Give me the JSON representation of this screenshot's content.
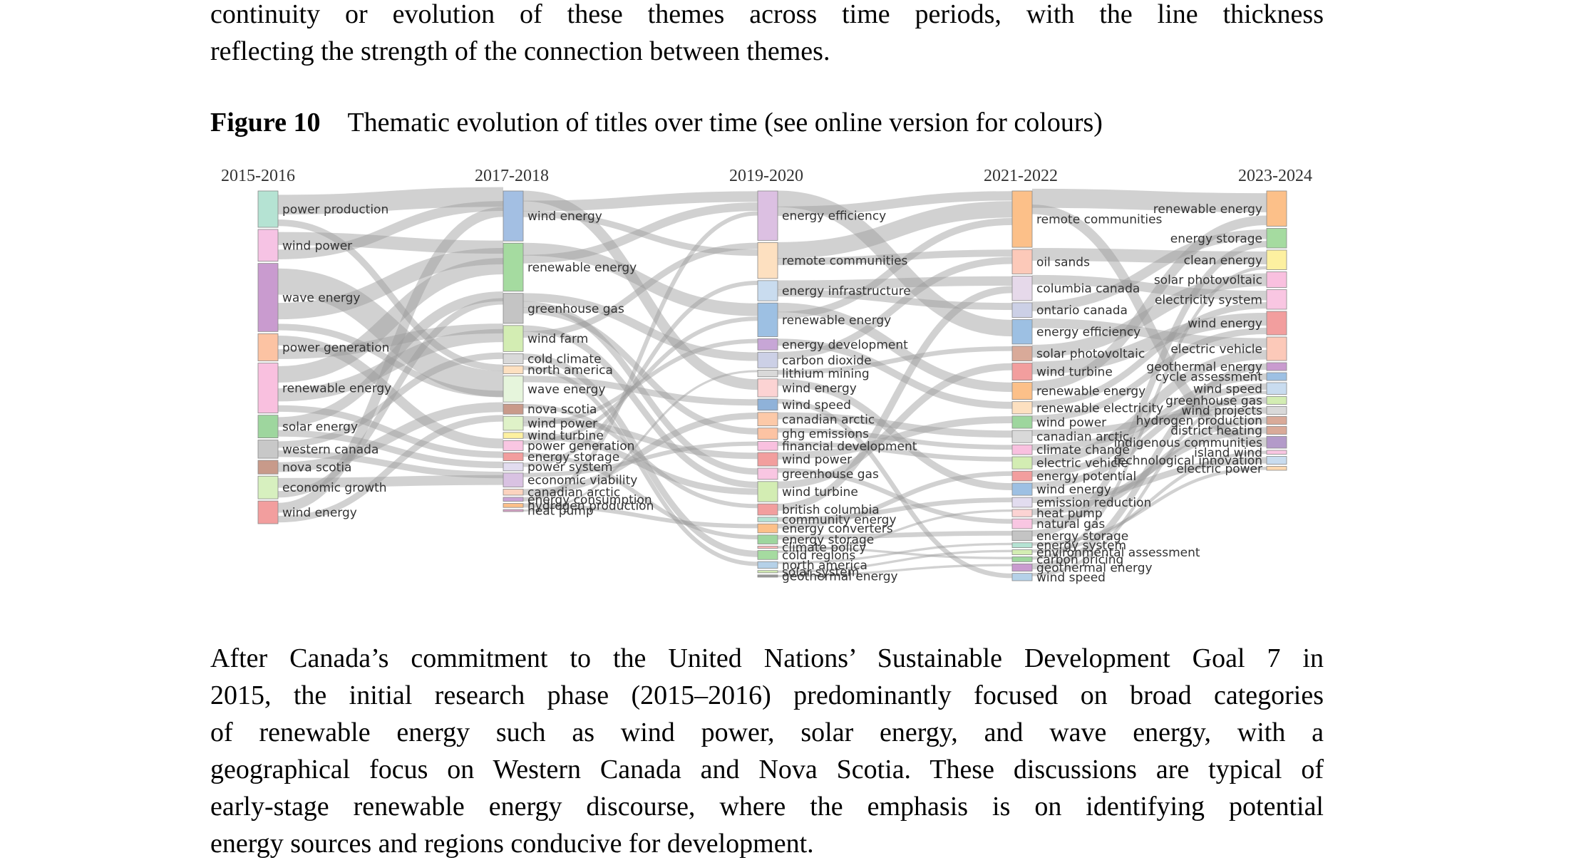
{
  "text_above": [
    "continuity or evolution of these themes across time periods, with the line thickness",
    "reflecting the strength of the connection between themes."
  ],
  "figure": {
    "label": "Figure 10",
    "caption": "Thematic evolution of titles over time (see online version for colours)"
  },
  "chart_data": {
    "type": "sankey",
    "periods": [
      "2015-2016",
      "2017-2018",
      "2019-2020",
      "2021-2022",
      "2023-2024"
    ],
    "nodes": [
      [
        {
          "label": "power production",
          "color": "#b5e3d3"
        },
        {
          "label": "wind power",
          "color": "#f6c3e4"
        },
        {
          "label": "wave energy",
          "color": "#c99bcf"
        },
        {
          "label": "power generation",
          "color": "#fcc3a3"
        },
        {
          "label": "renewable energy",
          "color": "#f9c0df"
        },
        {
          "label": "solar energy",
          "color": "#9ed69e"
        },
        {
          "label": "western canada",
          "color": "#c8c8c8"
        },
        {
          "label": "nova scotia",
          "color": "#c89a8a"
        },
        {
          "label": "economic growth",
          "color": "#d7f0bf"
        },
        {
          "label": "wind energy",
          "color": "#f29e9e"
        }
      ],
      [
        {
          "label": "wind energy",
          "color": "#a3bfe3"
        },
        {
          "label": "renewable energy",
          "color": "#a5dba0"
        },
        {
          "label": "greenhouse gas",
          "color": "#c4c4c4"
        },
        {
          "label": "wind farm",
          "color": "#d3edb3"
        },
        {
          "label": "cold climate",
          "color": "#d9d9d9"
        },
        {
          "label": "north america",
          "color": "#fde0c0"
        },
        {
          "label": "wave energy",
          "color": "#e6f5dc"
        },
        {
          "label": "nova scotia",
          "color": "#c99a8a"
        },
        {
          "label": "wind power",
          "color": "#dff2c8"
        },
        {
          "label": "wind turbine",
          "color": "#fdf0a0"
        },
        {
          "label": "power generation",
          "color": "#f9c6e2"
        },
        {
          "label": "energy storage",
          "color": "#f29e9e"
        },
        {
          "label": "power system",
          "color": "#e2dcef"
        },
        {
          "label": "economic viability",
          "color": "#d9c2e2"
        },
        {
          "label": "canadian arctic",
          "color": "#fcd3bf"
        },
        {
          "label": "energy consumption",
          "color": "#c9a3d6"
        },
        {
          "label": "hydrogen production",
          "color": "#fcc089"
        },
        {
          "label": "heat pump",
          "color": "#d8a3c8"
        }
      ],
      [
        {
          "label": "energy efficiency",
          "color": "#dcc0e2"
        },
        {
          "label": "remote communities",
          "color": "#fde0c0"
        },
        {
          "label": "energy infrastructure",
          "color": "#c9dcef"
        },
        {
          "label": "renewable energy",
          "color": "#9dc0e3"
        },
        {
          "label": "energy development",
          "color": "#c7a6d6"
        },
        {
          "label": "carbon dioxide",
          "color": "#ccd0e6"
        },
        {
          "label": "lithium mining",
          "color": "#d9d9d9"
        },
        {
          "label": "wind energy",
          "color": "#fcd3d3"
        },
        {
          "label": "wind speed",
          "color": "#8fb2d9"
        },
        {
          "label": "canadian arctic",
          "color": "#fcc9a8"
        },
        {
          "label": "ghg emissions",
          "color": "#fcc3a3"
        },
        {
          "label": "financial development",
          "color": "#f9c0df"
        },
        {
          "label": "wind power",
          "color": "#f29e9e"
        },
        {
          "label": "greenhouse gas",
          "color": "#f9c6e2"
        },
        {
          "label": "wind turbine",
          "color": "#d3edb3"
        },
        {
          "label": "british columbia",
          "color": "#f29e9e"
        },
        {
          "label": "community energy",
          "color": "#b5e3d3"
        },
        {
          "label": "energy converters",
          "color": "#fcc089"
        },
        {
          "label": "energy storage",
          "color": "#9ed69e"
        },
        {
          "label": "climate policy",
          "color": "#fcb9b9"
        },
        {
          "label": "cold regions",
          "color": "#a5dba0"
        },
        {
          "label": "north america",
          "color": "#b5d1e8"
        },
        {
          "label": "solar system",
          "color": "#d3edb3"
        },
        {
          "label": "geothermal energy",
          "color": "#999999"
        }
      ],
      [
        {
          "label": "remote communities",
          "color": "#fcc089"
        },
        {
          "label": "oil sands",
          "color": "#fcc9b9"
        },
        {
          "label": "columbia canada",
          "color": "#e6d9ea"
        },
        {
          "label": "ontario canada",
          "color": "#ccd0e6"
        },
        {
          "label": "energy efficiency",
          "color": "#9dc0e3"
        },
        {
          "label": "solar photovoltaic",
          "color": "#d9aa99"
        },
        {
          "label": "wind turbine",
          "color": "#f29e9e"
        },
        {
          "label": "renewable energy",
          "color": "#fcc089"
        },
        {
          "label": "renewable electricity",
          "color": "#fde0c0"
        },
        {
          "label": "wind power",
          "color": "#9ed69e"
        },
        {
          "label": "canadian arctic",
          "color": "#d9d9d9"
        },
        {
          "label": "climate change",
          "color": "#f9c0df"
        },
        {
          "label": "electric vehicle",
          "color": "#d3edb3"
        },
        {
          "label": "energy potential",
          "color": "#f29e9e"
        },
        {
          "label": "wind energy",
          "color": "#9dc0e3"
        },
        {
          "label": "emission reduction",
          "color": "#e2dcef"
        },
        {
          "label": "heat pump",
          "color": "#fcd3d3"
        },
        {
          "label": "natural gas",
          "color": "#f9c6e2"
        },
        {
          "label": "energy storage",
          "color": "#c4c4c4"
        },
        {
          "label": "energy system",
          "color": "#b5e3d3"
        },
        {
          "label": "environmental assessment",
          "color": "#d3edb3"
        },
        {
          "label": "carbon pricing",
          "color": "#9ed69e"
        },
        {
          "label": "geothermal energy",
          "color": "#c99bcf"
        },
        {
          "label": "wind speed",
          "color": "#b5d1e8"
        }
      ],
      [
        {
          "label": "renewable energy",
          "color": "#fcc089"
        },
        {
          "label": "energy storage",
          "color": "#a5dba0"
        },
        {
          "label": "clean energy",
          "color": "#fdf0a0"
        },
        {
          "label": "solar photovoltaic",
          "color": "#f9c0df"
        },
        {
          "label": "electricity system",
          "color": "#f9c6e2"
        },
        {
          "label": "wind energy",
          "color": "#f29e9e"
        },
        {
          "label": "electric vehicle",
          "color": "#fcc9b9"
        },
        {
          "label": "geothermal energy",
          "color": "#c99bcf"
        },
        {
          "label": "cycle assessment",
          "color": "#9dc0e3"
        },
        {
          "label": "wind speed",
          "color": "#c9dcef"
        },
        {
          "label": "greenhouse gas",
          "color": "#d3edb3"
        },
        {
          "label": "wind projects",
          "color": "#d9d9d9"
        },
        {
          "label": "hydrogen production",
          "color": "#d9aa99"
        },
        {
          "label": "district heating",
          "color": "#d9aa99"
        },
        {
          "label": "indigenous communities",
          "color": "#b39ac9"
        },
        {
          "label": "island wind",
          "color": "#f9c6e2"
        },
        {
          "label": "technological innovation",
          "color": "#c9dcef"
        },
        {
          "label": "electric power",
          "color": "#fcd8b0"
        }
      ]
    ],
    "links": [
      [
        [
          0,
          0,
          0,
          6
        ],
        [
          0,
          1,
          1,
          4
        ],
        [
          0,
          1,
          0,
          3
        ],
        [
          0,
          2,
          6,
          8
        ],
        [
          0,
          2,
          1,
          5
        ],
        [
          0,
          3,
          10,
          3
        ],
        [
          0,
          3,
          3,
          3
        ],
        [
          0,
          4,
          1,
          5
        ],
        [
          0,
          4,
          3,
          4
        ],
        [
          0,
          5,
          2,
          3
        ],
        [
          0,
          5,
          12,
          2
        ],
        [
          0,
          6,
          4,
          2
        ],
        [
          0,
          6,
          13,
          2
        ],
        [
          0,
          7,
          7,
          3
        ],
        [
          0,
          8,
          13,
          3
        ],
        [
          0,
          8,
          2,
          2
        ],
        [
          0,
          9,
          0,
          3
        ],
        [
          0,
          9,
          8,
          2
        ],
        [
          0,
          0,
          5,
          2
        ],
        [
          0,
          2,
          6,
          2
        ],
        [
          0,
          4,
          11,
          2
        ]
      ],
      [
        [
          1,
          0,
          7,
          5
        ],
        [
          1,
          0,
          0,
          5
        ],
        [
          1,
          1,
          3,
          6
        ],
        [
          1,
          1,
          0,
          4
        ],
        [
          1,
          2,
          5,
          4
        ],
        [
          1,
          2,
          13,
          3
        ],
        [
          1,
          3,
          14,
          3
        ],
        [
          1,
          3,
          1,
          3
        ],
        [
          1,
          4,
          20,
          3
        ],
        [
          1,
          5,
          21,
          2
        ],
        [
          1,
          6,
          8,
          3
        ],
        [
          1,
          7,
          15,
          2
        ],
        [
          1,
          8,
          12,
          3
        ],
        [
          1,
          9,
          14,
          3
        ],
        [
          1,
          10,
          3,
          2
        ],
        [
          1,
          11,
          18,
          2
        ],
        [
          1,
          12,
          2,
          2
        ],
        [
          1,
          13,
          11,
          2
        ],
        [
          1,
          14,
          9,
          3
        ],
        [
          1,
          15,
          0,
          2
        ],
        [
          1,
          16,
          17,
          2
        ],
        [
          1,
          17,
          6,
          1
        ],
        [
          1,
          0,
          1,
          3
        ],
        [
          1,
          2,
          10,
          3
        ],
        [
          1,
          8,
          4,
          2
        ]
      ],
      [
        [
          2,
          0,
          4,
          7
        ],
        [
          2,
          0,
          0,
          4
        ],
        [
          2,
          1,
          0,
          7
        ],
        [
          2,
          1,
          1,
          3
        ],
        [
          2,
          2,
          2,
          4
        ],
        [
          2,
          2,
          3,
          3
        ],
        [
          2,
          3,
          7,
          4
        ],
        [
          2,
          4,
          8,
          3
        ],
        [
          2,
          5,
          1,
          3
        ],
        [
          2,
          6,
          5,
          2
        ],
        [
          2,
          7,
          14,
          3
        ],
        [
          2,
          8,
          23,
          2
        ],
        [
          2,
          9,
          10,
          3
        ],
        [
          2,
          10,
          11,
          2
        ],
        [
          2,
          11,
          12,
          2
        ],
        [
          2,
          12,
          9,
          3
        ],
        [
          2,
          13,
          17,
          2
        ],
        [
          2,
          14,
          6,
          3
        ],
        [
          2,
          15,
          2,
          3
        ],
        [
          2,
          16,
          15,
          2
        ],
        [
          2,
          17,
          13,
          2
        ],
        [
          2,
          18,
          18,
          2
        ],
        [
          2,
          19,
          21,
          1
        ],
        [
          2,
          20,
          16,
          1
        ],
        [
          2,
          21,
          19,
          1
        ],
        [
          2,
          22,
          20,
          1
        ],
        [
          2,
          23,
          22,
          1
        ],
        [
          2,
          3,
          0,
          3
        ]
      ],
      [
        [
          3,
          0,
          0,
          6
        ],
        [
          3,
          0,
          14,
          3
        ],
        [
          3,
          1,
          2,
          4
        ],
        [
          3,
          2,
          4,
          3
        ],
        [
          3,
          3,
          1,
          3
        ],
        [
          3,
          4,
          6,
          3
        ],
        [
          3,
          5,
          3,
          4
        ],
        [
          3,
          6,
          5,
          4
        ],
        [
          3,
          7,
          0,
          3
        ],
        [
          3,
          8,
          4,
          2
        ],
        [
          3,
          9,
          5,
          2
        ],
        [
          3,
          10,
          11,
          2
        ],
        [
          3,
          11,
          10,
          2
        ],
        [
          3,
          12,
          6,
          3
        ],
        [
          3,
          13,
          8,
          2
        ],
        [
          3,
          14,
          9,
          2
        ],
        [
          3,
          15,
          16,
          2
        ],
        [
          3,
          16,
          13,
          2
        ],
        [
          3,
          17,
          12,
          2
        ],
        [
          3,
          18,
          1,
          2
        ],
        [
          3,
          19,
          17,
          1
        ],
        [
          3,
          20,
          15,
          1
        ],
        [
          3,
          21,
          2,
          1
        ],
        [
          3,
          22,
          7,
          2
        ],
        [
          3,
          23,
          9,
          1
        ]
      ]
    ]
  }
}
